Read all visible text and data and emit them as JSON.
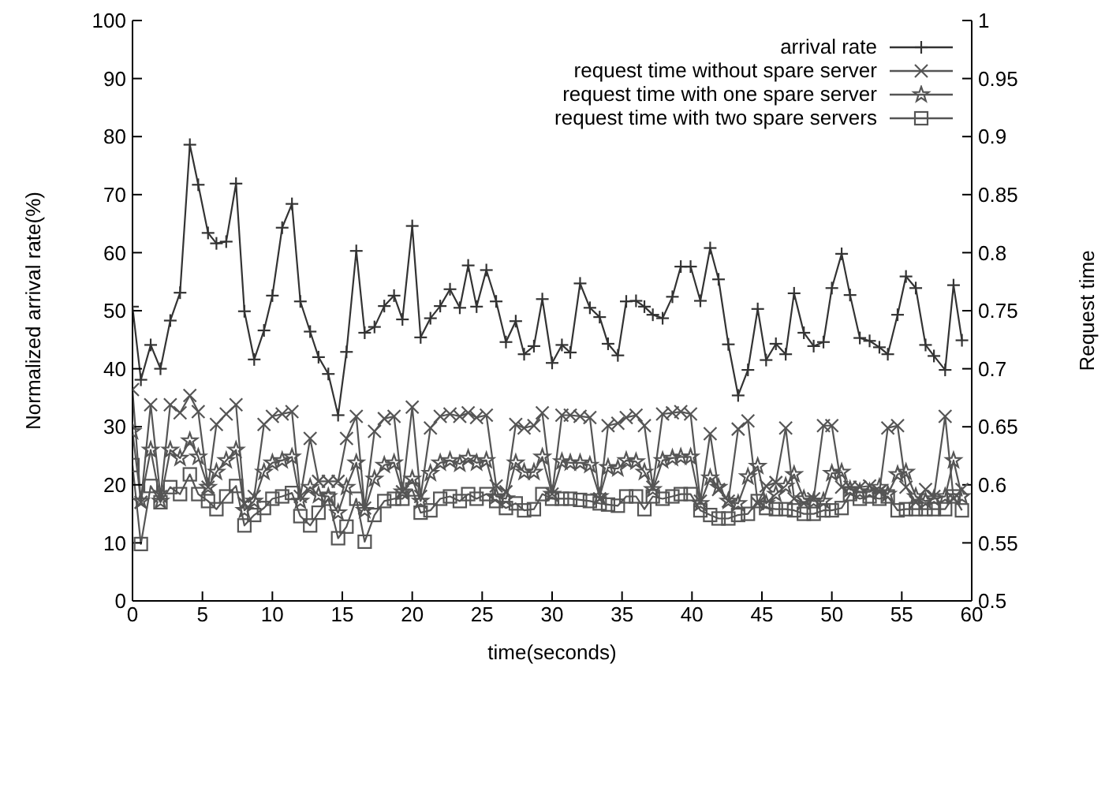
{
  "chart_data": {
    "type": "line",
    "xlabel": "time(seconds)",
    "ylabel": "Normalized arrival rate(%)",
    "y2label": "Request time",
    "xlim": [
      0,
      60
    ],
    "xticks": [
      0,
      5,
      10,
      15,
      20,
      25,
      30,
      35,
      40,
      45,
      50,
      55,
      60
    ],
    "ylim": [
      0,
      100
    ],
    "yticks": [
      0,
      10,
      20,
      30,
      40,
      50,
      60,
      70,
      80,
      90,
      100
    ],
    "y2lim": [
      0.5,
      1
    ],
    "y2ticks": [
      0.5,
      0.55,
      0.6,
      0.65,
      0.7,
      0.75,
      0.8,
      0.85,
      0.9,
      0.95,
      1
    ],
    "legend": "top right",
    "line_style": "solid",
    "x": [
      0,
      0.6,
      1.3,
      2.0,
      2.7,
      3.4,
      4.1,
      4.7,
      5.4,
      6.0,
      6.7,
      7.4,
      8.0,
      8.7,
      9.4,
      10.0,
      10.7,
      11.4,
      12.0,
      12.7,
      13.3,
      14.0,
      14.7,
      15.3,
      16.0,
      16.6,
      17.3,
      18.0,
      18.7,
      19.3,
      20.0,
      20.6,
      21.3,
      22.0,
      22.7,
      23.4,
      24.0,
      24.6,
      25.3,
      26.0,
      26.7,
      27.4,
      28.0,
      28.7,
      29.3,
      30.0,
      30.7,
      31.3,
      32.0,
      32.7,
      33.4,
      34.0,
      34.7,
      35.3,
      36.0,
      36.6,
      37.2,
      37.9,
      38.6,
      39.2,
      39.9,
      40.6,
      41.3,
      41.9,
      42.6,
      43.3,
      44.0,
      44.7,
      45.3,
      46.0,
      46.7,
      47.3,
      48.0,
      48.7,
      49.4,
      50.0,
      50.7,
      51.3,
      52.0,
      52.7,
      53.4,
      54.0,
      54.7,
      55.3,
      56.0,
      56.7,
      57.3,
      58.1,
      58.7,
      59.3
    ],
    "series": [
      {
        "name": "arrival rate",
        "color": "#333333",
        "marker": "plus",
        "values": [
          50.7,
          38.1,
          44.1,
          40,
          48.3,
          53.1,
          78.6,
          71.7,
          63.4,
          61.6,
          61.9,
          71.9,
          49.9,
          41.6,
          46.6,
          52.6,
          64.3,
          68.4,
          51.6,
          46.4,
          42,
          39.1,
          32,
          42.9,
          60.3,
          46.2,
          47.2,
          50.8,
          52.6,
          48.5,
          64.6,
          45.4,
          48.7,
          50.8,
          53.7,
          50.5,
          57.8,
          50.7,
          57,
          51.6,
          44.6,
          48.2,
          42.5,
          43.9,
          52,
          41,
          44.1,
          42.8,
          54.7,
          50.5,
          48.9,
          44.3,
          42.3,
          51.6,
          51.7,
          50.7,
          49.3,
          48.7,
          52.4,
          57.6,
          57.6,
          51.7,
          60.8,
          55.4,
          44.2,
          35.4,
          39.8,
          50.3,
          41.5,
          44.3,
          42.5,
          53,
          46.2,
          43.9,
          44.6,
          53.9,
          59.8,
          52.7,
          45.3,
          44.8,
          43.7,
          42.5,
          49.3,
          55.9,
          53.9,
          44.1,
          42.2,
          39.8,
          54.4,
          44.9
        ]
      },
      {
        "name": "request time without spare server",
        "color": "#555555",
        "marker": "cross",
        "axis": "y2",
        "values": [
          0.682,
          0.585,
          0.669,
          0.59,
          0.669,
          0.662,
          0.677,
          0.663,
          0.598,
          0.652,
          0.661,
          0.669,
          0.584,
          0.59,
          0.652,
          0.659,
          0.661,
          0.663,
          0.59,
          0.64,
          0.603,
          0.603,
          0.603,
          0.64,
          0.659,
          0.58,
          0.646,
          0.657,
          0.659,
          0.594,
          0.667,
          0.59,
          0.649,
          0.659,
          0.661,
          0.659,
          0.662,
          0.658,
          0.66,
          0.599,
          0.594,
          0.652,
          0.649,
          0.651,
          0.662,
          0.592,
          0.66,
          0.66,
          0.659,
          0.658,
          0.588,
          0.651,
          0.653,
          0.658,
          0.66,
          0.651,
          0.598,
          0.661,
          0.662,
          0.663,
          0.661,
          0.586,
          0.644,
          0.596,
          0.586,
          0.648,
          0.655,
          0.584,
          0.599,
          0.602,
          0.649,
          0.588,
          0.584,
          0.588,
          0.651,
          0.651,
          0.598,
          0.598,
          0.598,
          0.599,
          0.594,
          0.649,
          0.651,
          0.598,
          0.585,
          0.596,
          0.59,
          0.659,
          0.588,
          0.596
        ]
      },
      {
        "name": "request time with one spare server",
        "color": "#555555",
        "marker": "star",
        "axis": "y2",
        "values": [
          0.646,
          0.586,
          0.63,
          0.586,
          0.63,
          0.623,
          0.638,
          0.624,
          0.598,
          0.611,
          0.621,
          0.63,
          0.578,
          0.586,
          0.611,
          0.619,
          0.621,
          0.624,
          0.586,
          0.598,
          0.591,
          0.59,
          0.576,
          0.598,
          0.619,
          0.578,
          0.605,
          0.617,
          0.619,
          0.594,
          0.605,
          0.586,
          0.61,
          0.619,
          0.621,
          0.618,
          0.623,
          0.619,
          0.621,
          0.59,
          0.588,
          0.619,
          0.611,
          0.611,
          0.624,
          0.592,
          0.62,
          0.619,
          0.619,
          0.617,
          0.59,
          0.615,
          0.614,
          0.621,
          0.62,
          0.611,
          0.596,
          0.621,
          0.623,
          0.624,
          0.624,
          0.584,
          0.606,
          0.598,
          0.586,
          0.584,
          0.607,
          0.616,
          0.584,
          0.592,
          0.599,
          0.609,
          0.588,
          0.586,
          0.586,
          0.61,
          0.611,
          0.596,
          0.594,
          0.594,
          0.598,
          0.592,
          0.609,
          0.611,
          0.59,
          0.586,
          0.588,
          0.59,
          0.621,
          0.59
        ]
      },
      {
        "name": "request time with two spare servers",
        "color": "#555555",
        "marker": "square",
        "axis": "y2",
        "values": [
          0.617,
          0.549,
          0.599,
          0.585,
          0.598,
          0.592,
          0.609,
          0.592,
          0.586,
          0.579,
          0.59,
          0.599,
          0.565,
          0.574,
          0.58,
          0.588,
          0.59,
          0.593,
          0.573,
          0.565,
          0.576,
          0.588,
          0.554,
          0.564,
          0.588,
          0.551,
          0.574,
          0.586,
          0.588,
          0.588,
          0.596,
          0.576,
          0.578,
          0.588,
          0.59,
          0.586,
          0.592,
          0.588,
          0.592,
          0.586,
          0.58,
          0.584,
          0.578,
          0.579,
          0.592,
          0.588,
          0.588,
          0.588,
          0.587,
          0.586,
          0.584,
          0.583,
          0.582,
          0.59,
          0.59,
          0.579,
          0.59,
          0.588,
          0.59,
          0.592,
          0.592,
          0.578,
          0.574,
          0.571,
          0.571,
          0.574,
          0.575,
          0.586,
          0.58,
          0.579,
          0.579,
          0.578,
          0.575,
          0.575,
          0.578,
          0.578,
          0.58,
          0.592,
          0.588,
          0.59,
          0.588,
          0.59,
          0.578,
          0.579,
          0.579,
          0.579,
          0.579,
          0.579,
          0.59,
          0.578
        ]
      }
    ]
  }
}
